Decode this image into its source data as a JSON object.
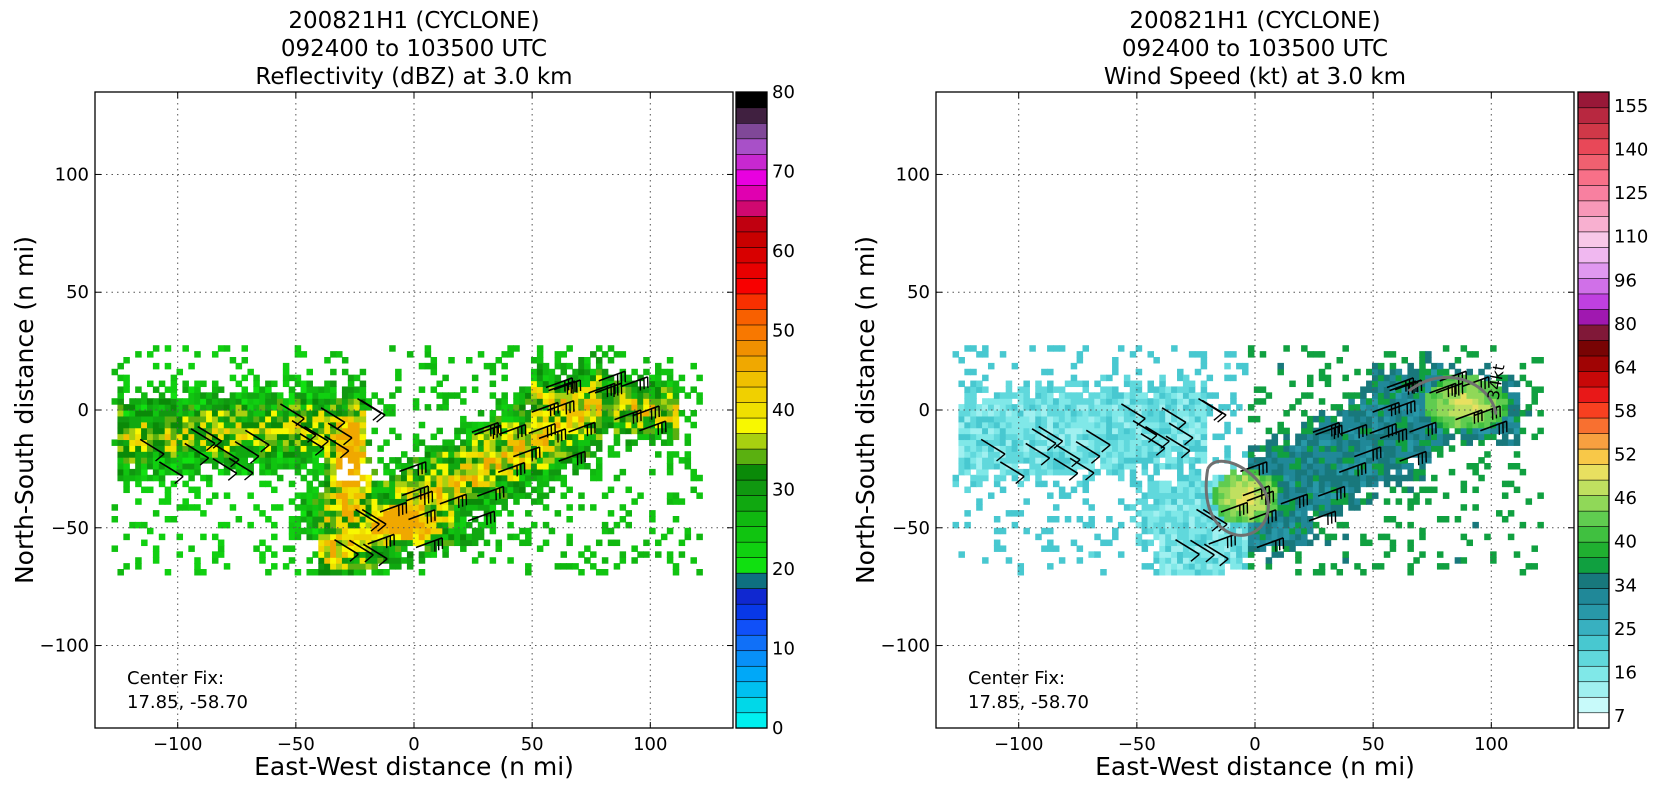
{
  "chart_data": [
    {
      "type": "heatmap",
      "title_lines": [
        "200821H1 (CYCLONE)",
        "092400 to 103500 UTC",
        "Reflectivity (dBZ) at 3.0 km"
      ],
      "xlabel": "East-West distance (n mi)",
      "ylabel": "North-South distance (n mi)",
      "xlim": [
        -135,
        135
      ],
      "ylim": [
        -135,
        135
      ],
      "xticks": [
        -100,
        -50,
        0,
        50,
        100
      ],
      "yticks": [
        -100,
        -50,
        0,
        50,
        100
      ],
      "xtick_labels": [
        "−100",
        "−50",
        "0",
        "50",
        "100"
      ],
      "ytick_labels": [
        "−100",
        "−50",
        "0",
        "50",
        "100"
      ],
      "grid": true,
      "annotation": [
        "Center Fix:",
        "17.85, -58.70"
      ],
      "colorbar": {
        "min": 0,
        "max": 80,
        "tick_values": [
          0,
          10,
          20,
          30,
          40,
          50,
          60,
          70,
          80
        ],
        "tick_labels": [
          "0",
          "10",
          "20",
          "30",
          "40",
          "50",
          "60",
          "70",
          "80"
        ],
        "colors": [
          "#00f0f0",
          "#00d8e8",
          "#00c0f0",
          "#00a8f8",
          "#0890f8",
          "#1070f8",
          "#1050f8",
          "#0838e8",
          "#1028d0",
          "#0e7080",
          "#10e010",
          "#10d010",
          "#10c410",
          "#10b810",
          "#10a810",
          "#109810",
          "#0a8a08",
          "#5ab010",
          "#a8d010",
          "#f8f800",
          "#f0e000",
          "#f0d000",
          "#f0c000",
          "#f0a800",
          "#f09000",
          "#f87800",
          "#f86000",
          "#f83000",
          "#f80000",
          "#e80000",
          "#d80000",
          "#c80000",
          "#c00010",
          "#d00870",
          "#e000b0",
          "#e800e0",
          "#c828d0",
          "#a850c8",
          "#804898",
          "#402040",
          "#000000"
        ]
      },
      "data_field": "reflectivity echo covering a band from about x=-125 to x=115 n mi, y=-68 to y=25 n mi; peak values 35-45 dBZ near (-30, -20) to (-10, -50)",
      "wind_barbs": "flight-level wind barbs overlaid across echo region"
    },
    {
      "type": "heatmap",
      "title_lines": [
        "200821H1 (CYCLONE)",
        "092400 to 103500 UTC",
        "Wind Speed (kt) at 3.0 km"
      ],
      "xlabel": "East-West distance (n mi)",
      "ylabel": "North-South distance (n mi)",
      "xlim": [
        -135,
        135
      ],
      "ylim": [
        -135,
        135
      ],
      "xticks": [
        -100,
        -50,
        0,
        50,
        100
      ],
      "yticks": [
        -100,
        -50,
        0,
        50,
        100
      ],
      "xtick_labels": [
        "−100",
        "−50",
        "0",
        "50",
        "100"
      ],
      "ytick_labels": [
        "−100",
        "−50",
        "0",
        "50",
        "100"
      ],
      "grid": true,
      "annotation": [
        "Center Fix:",
        "17.85, -58.70"
      ],
      "contour_label": "34kt",
      "colorbar": {
        "tick_labels": [
          "7",
          "16",
          "25",
          "34",
          "40",
          "46",
          "52",
          "58",
          "64",
          "80",
          "96",
          "110",
          "125",
          "140",
          "155"
        ],
        "colors": [
          "#ffffff",
          "#c8fafa",
          "#a0f0f0",
          "#80e8e8",
          "#60d8dc",
          "#48c8d0",
          "#38b0c0",
          "#2898a8",
          "#208898",
          "#18787c",
          "#10a040",
          "#20b030",
          "#40c040",
          "#60cc50",
          "#90d858",
          "#c0e060",
          "#e8e060",
          "#f8c848",
          "#f8a040",
          "#f87030",
          "#f84020",
          "#e81818",
          "#c80808",
          "#a00404",
          "#780404",
          "#801838",
          "#a018b0",
          "#c040e0",
          "#d070e8",
          "#e098f0",
          "#f0b8f0",
          "#f8c8e8",
          "#f8b0d0",
          "#f898b8",
          "#f880a0",
          "#f87088",
          "#f06070",
          "#e84858",
          "#d03848",
          "#b82840",
          "#981838"
        ]
      },
      "data_field": "wind speed field over the same echo region, mostly 7-34 kt with 34-46 kt pockets near (-5, -40) and (90, 0)",
      "wind_barbs": "flight-level wind barbs overlaid across echo region"
    }
  ]
}
